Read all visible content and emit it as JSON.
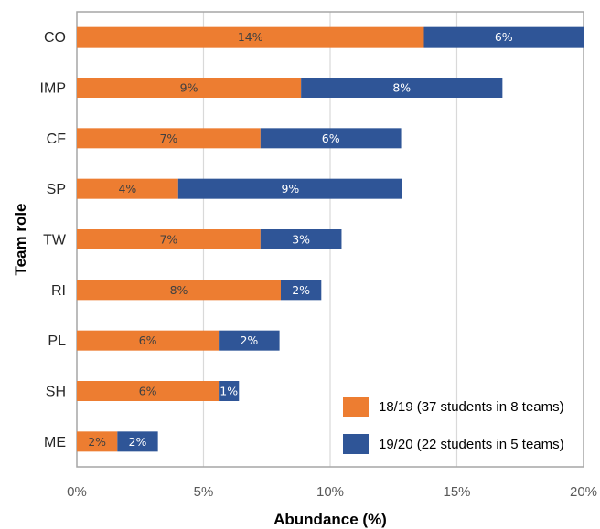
{
  "chart_data": {
    "type": "bar",
    "orientation": "horizontal",
    "stacked": true,
    "categories": [
      "CO",
      "IMP",
      "CF",
      "SP",
      "TW",
      "RI",
      "PL",
      "SH",
      "ME"
    ],
    "series": [
      {
        "name": "18/19 (37 students in 8 teams)",
        "color": "#ED7D31",
        "label_color": "#404040",
        "values": [
          13.7,
          8.85,
          7.25,
          4.0,
          7.25,
          8.05,
          5.6,
          5.6,
          1.6
        ],
        "labels": [
          "14%",
          "9%",
          "7%",
          "4%",
          "7%",
          "8%",
          "6%",
          "6%",
          "2%"
        ]
      },
      {
        "name": "19/20 (22 students in 5 teams)",
        "color": "#2F5597",
        "label_color": "#ffffff",
        "values": [
          6.3,
          7.95,
          5.55,
          8.85,
          3.2,
          1.6,
          2.4,
          0.8,
          1.6
        ],
        "labels": [
          "6%",
          "8%",
          "6%",
          "9%",
          "3%",
          "2%",
          "2%",
          "1%",
          "2%"
        ]
      }
    ],
    "xlabel": "Abundance (%)",
    "ylabel": "Team role",
    "xlim": [
      0,
      20
    ],
    "xticks": [
      "0%",
      "5%",
      "10%",
      "15%",
      "20%"
    ],
    "grid": "vertical",
    "legend": "bottom-right inside"
  }
}
